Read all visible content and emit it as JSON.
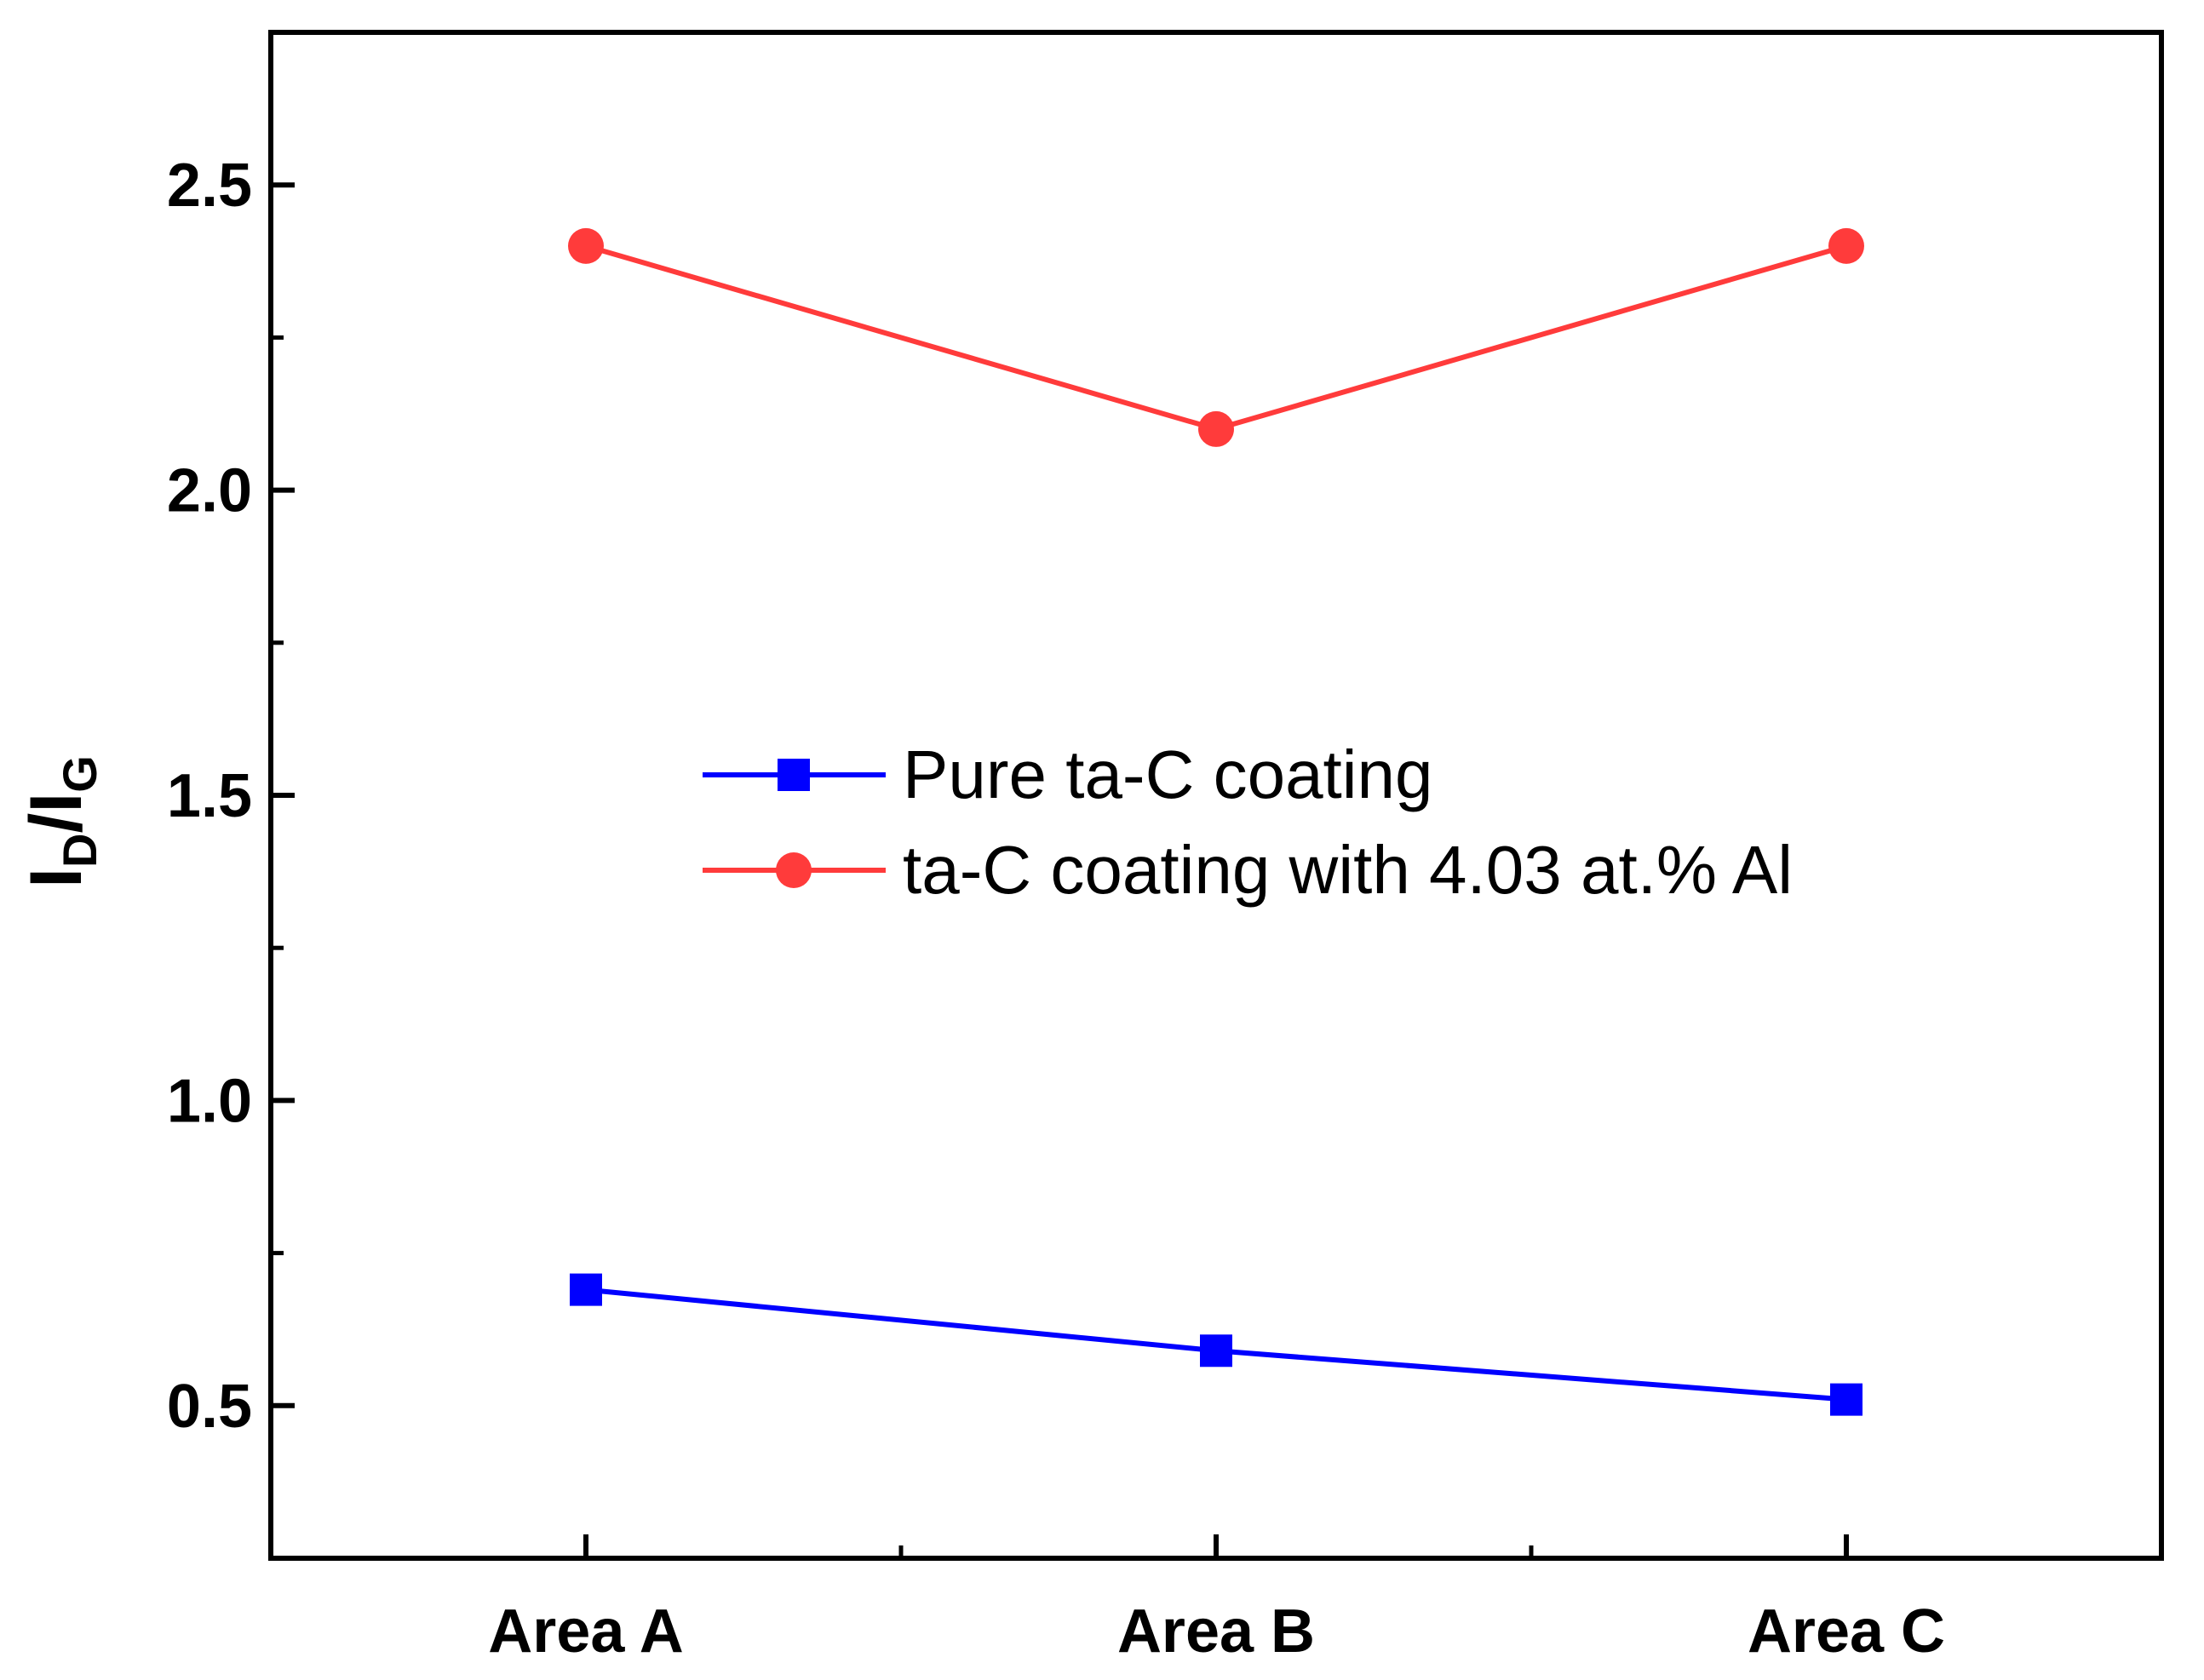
{
  "chart_data": {
    "type": "line",
    "title": "",
    "xlabel": "",
    "ylabel": {
      "text_main": "I",
      "sub_d": "D",
      "slash": "/",
      "text_main2": "I",
      "sub_g": "G"
    },
    "categories": [
      "Area A",
      "Area B",
      "Area C"
    ],
    "ylim": [
      0.25,
      2.75
    ],
    "yticks": [
      0.5,
      1.0,
      1.5,
      2.0,
      2.5
    ],
    "ytick_labels": [
      "0.5",
      "1.0",
      "1.5",
      "2.0",
      "2.5"
    ],
    "y_minor_ticks": [
      0.75,
      1.25,
      1.75,
      2.25
    ],
    "grid": false,
    "legend_position": "center",
    "series": [
      {
        "name": "Pure ta-C coating",
        "color": "#0000ff",
        "marker": "square",
        "values": [
          0.69,
          0.59,
          0.51
        ]
      },
      {
        "name": "ta-C coating with 4.03 at.% Al",
        "color": "#ff3b3b",
        "marker": "circle",
        "values": [
          2.4,
          2.1,
          2.4
        ]
      }
    ]
  }
}
